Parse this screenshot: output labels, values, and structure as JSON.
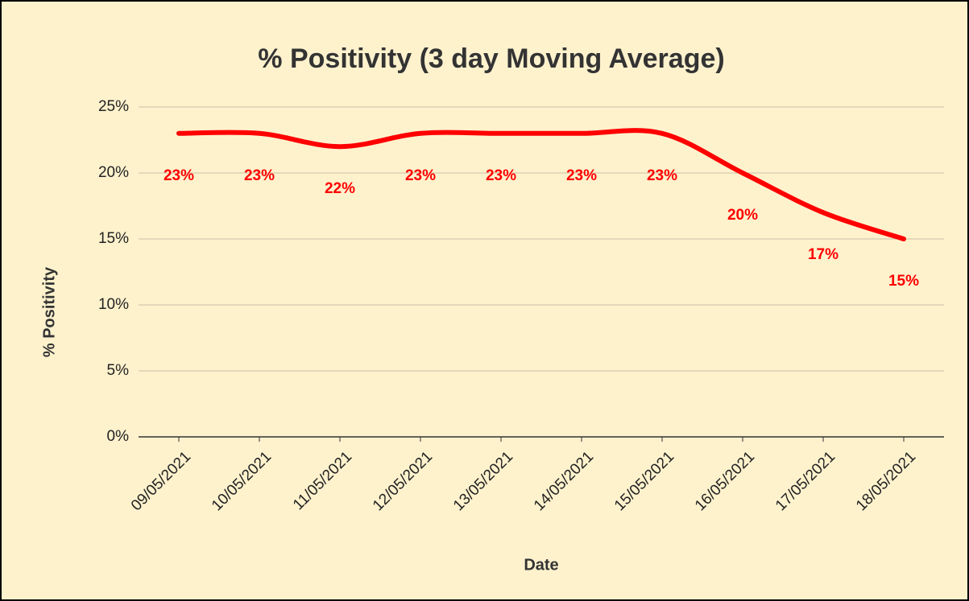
{
  "chart_data": {
    "type": "line",
    "title": "% Positivity (3 day Moving Average)",
    "x_label": "Date",
    "y_label": "% Positivity",
    "categories": [
      "09/05/2021",
      "10/05/2021",
      "11/05/2021",
      "12/05/2021",
      "13/05/2021",
      "14/05/2021",
      "15/05/2021",
      "16/05/2021",
      "17/05/2021",
      "18/05/2021"
    ],
    "series": [
      {
        "name": "% Positivity",
        "color": "#ff0000",
        "values": [
          23,
          23,
          22,
          23,
          23,
          23,
          23,
          20,
          17,
          15
        ],
        "value_labels": [
          "23%",
          "23%",
          "22%",
          "23%",
          "23%",
          "23%",
          "23%",
          "20%",
          "17%",
          "15%"
        ]
      }
    ],
    "ylim": [
      0,
      25
    ],
    "yticks": [
      {
        "value": 0,
        "label": "0%"
      },
      {
        "value": 5,
        "label": "5%"
      },
      {
        "value": 10,
        "label": "10%"
      },
      {
        "value": 15,
        "label": "15%"
      },
      {
        "value": 20,
        "label": "20%"
      },
      {
        "value": 25,
        "label": "25%"
      }
    ],
    "grid": true,
    "smooth": true
  }
}
